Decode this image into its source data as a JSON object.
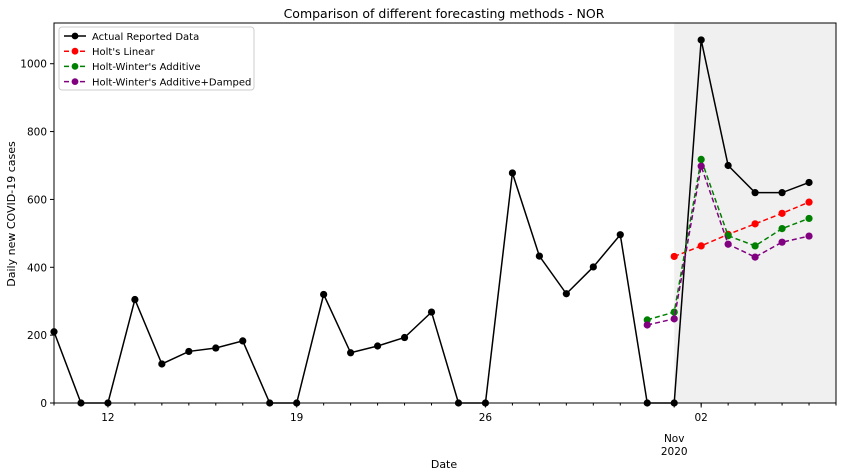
{
  "chart_data": {
    "type": "line",
    "title": "Comparison of different forecasting methods - NOR",
    "xlabel": "Date",
    "ylabel": "Daily new COVID-19 cases",
    "ylim": [
      0,
      1120
    ],
    "y_ticks": [
      0,
      200,
      400,
      600,
      800,
      1000
    ],
    "x_day_range": [
      -2,
      27
    ],
    "x_ticks": [
      {
        "day": 0,
        "label": "12"
      },
      {
        "day": 7,
        "label": "19"
      },
      {
        "day": 14,
        "label": "26"
      },
      {
        "day": 21,
        "label": "Nov\n2020"
      },
      {
        "day": 22,
        "label": "02"
      }
    ],
    "shaded_region": {
      "from_day": 21,
      "to_day": 27,
      "color": "#f0f0f0"
    },
    "legend_position": "top-left",
    "series": [
      {
        "name": "Actual Reported Data",
        "color": "#000000",
        "dashed": false,
        "x": [
          -2,
          -1,
          0,
          1,
          2,
          3,
          4,
          5,
          6,
          7,
          8,
          9,
          10,
          11,
          12,
          13,
          14,
          15,
          16,
          17,
          18,
          19,
          20,
          21,
          22,
          23,
          24,
          25,
          26
        ],
        "values": [
          210,
          0,
          0,
          305,
          115,
          152,
          162,
          183,
          0,
          0,
          320,
          148,
          168,
          193,
          268,
          0,
          0,
          678,
          433,
          322,
          401,
          496,
          0,
          0,
          1070,
          700,
          620,
          620,
          650
        ]
      },
      {
        "name": "Holt's Linear",
        "color": "#ff0000",
        "dashed": true,
        "x": [
          21,
          22,
          23,
          24,
          25,
          26
        ],
        "values": [
          432,
          463,
          497,
          528,
          559,
          592
        ]
      },
      {
        "name": "Holt-Winter's Additive",
        "color": "#008000",
        "dashed": true,
        "x": [
          20,
          21,
          22,
          23,
          24,
          25,
          26
        ],
        "values": [
          245,
          268,
          718,
          493,
          463,
          514,
          544
        ]
      },
      {
        "name": "Holt-Winter's Additive+Damped",
        "color": "#800080",
        "dashed": true,
        "x": [
          20,
          21,
          22,
          23,
          24,
          25,
          26
        ],
        "values": [
          230,
          248,
          698,
          468,
          430,
          474,
          492
        ]
      }
    ]
  }
}
